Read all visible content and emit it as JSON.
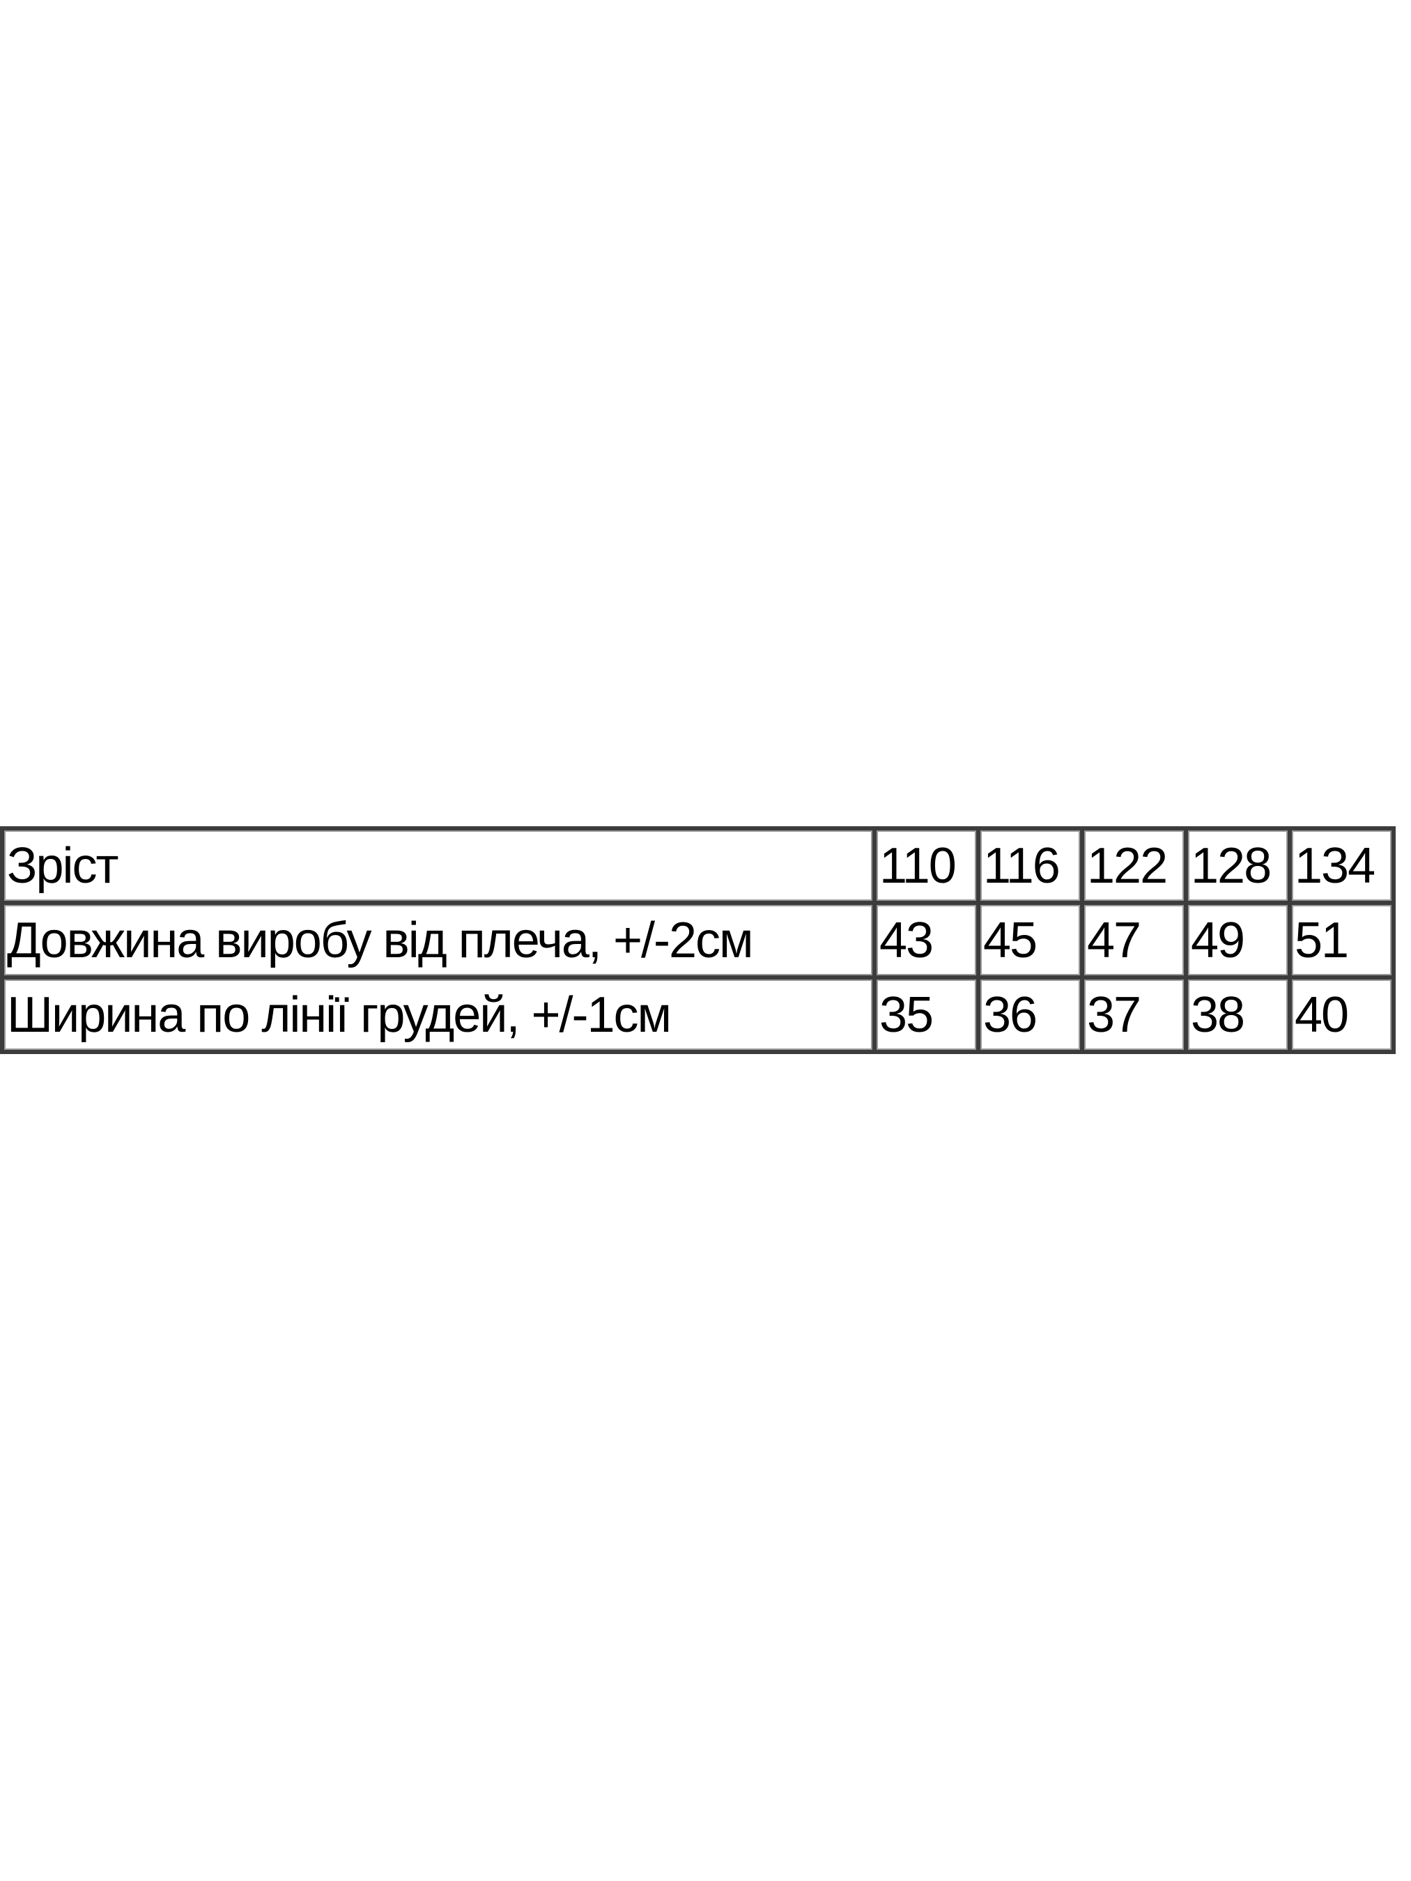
{
  "table": {
    "rows": [
      {
        "label": "Зріст",
        "values": [
          "110",
          "116",
          "122",
          "128",
          "134"
        ]
      },
      {
        "label": "Довжина виробу від плеча, +/-2см",
        "values": [
          "43",
          "45",
          "47",
          "49",
          "51"
        ]
      },
      {
        "label": "Ширина по лінії грудей, +/-1см",
        "values": [
          "35",
          "36",
          "37",
          "38",
          "40"
        ]
      }
    ]
  }
}
